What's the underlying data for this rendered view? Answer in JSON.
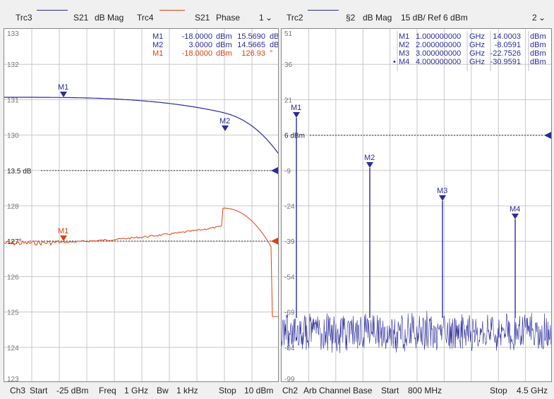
{
  "left": {
    "header": {
      "trc_a": "Trc3",
      "trc_a_param": "S21",
      "trc_a_format": "dB Mag",
      "trc_b": "Trc4",
      "trc_b_param": "S21",
      "trc_b_format": "Phase",
      "channel": "1"
    },
    "y_labels": [
      "133",
      "132",
      "131",
      "130",
      "13.5 dB",
      "128",
      "127°",
      "126",
      "125",
      "124",
      "123"
    ],
    "ref_db_label": "13.5 dB",
    "ref_deg_label": "127°",
    "markers_table": [
      {
        "name": "M1",
        "stim": "-18.0000",
        "stim_unit": "dBm",
        "value": "15.5690",
        "unit": "dB",
        "color": "#2b2b9a"
      },
      {
        "name": "M2",
        "stim": "3.0000",
        "stim_unit": "dBm",
        "value": "14.5665",
        "unit": "dB",
        "color": "#2b2b9a"
      },
      {
        "name": "M1",
        "stim": "-18.0000",
        "stim_unit": "dBm",
        "value": "126.93",
        "unit": "°",
        "color": "#e04010"
      }
    ],
    "marker_flags": [
      {
        "label": "M1",
        "color": "#2b2b9a"
      },
      {
        "label": "M2",
        "color": "#2b2b9a"
      },
      {
        "label": "M1",
        "color": "#e04010"
      }
    ],
    "footer": {
      "channel": "Ch3",
      "start_label": "Start",
      "start_value": "-25 dBm",
      "freq_label": "Freq",
      "freq_value": "1 GHz",
      "bw_label": "Bw",
      "bw_value": "1 kHz",
      "stop_label": "Stop",
      "stop_value": "10 dBm"
    }
  },
  "right": {
    "header": {
      "trc": "Trc2",
      "param": "§2",
      "format": "dB Mag",
      "scale": "15 dB/ Ref 6 dBm",
      "channel": "2"
    },
    "y_labels": [
      "51",
      "36",
      "21",
      "6 dBm",
      "-9",
      "-24",
      "-39",
      "-54",
      "-69",
      "-84",
      "-99"
    ],
    "ref_label": "6 dBm",
    "markers_table": [
      {
        "name": "M1",
        "freq": "1.000000000",
        "freq_unit": "GHz",
        "value": "14.0003",
        "unit": "dBm",
        "active": false
      },
      {
        "name": "M2",
        "freq": "2.000000000",
        "freq_unit": "GHz",
        "value": "-8.0591",
        "unit": "dBm",
        "active": false
      },
      {
        "name": "M3",
        "freq": "3.000000000",
        "freq_unit": "GHz",
        "value": "-22.7526",
        "unit": "dBm",
        "active": false
      },
      {
        "name": "M4",
        "freq": "4.000000000",
        "freq_unit": "GHz",
        "value": "-30.9591",
        "unit": "dBm",
        "active": true
      }
    ],
    "marker_flags": [
      "M1",
      "M2",
      "M3",
      "M4"
    ],
    "footer": {
      "channel": "Ch2",
      "base_label": "Arb Channel Base",
      "start_label": "Start",
      "start_value": "800 MHz",
      "stop_label": "Stop",
      "stop_value": "4.5 GHz"
    }
  },
  "colors": {
    "trace_blue": "#2b2b9a",
    "trace_orange": "#e04010",
    "grid": "#c8c8c8"
  }
}
